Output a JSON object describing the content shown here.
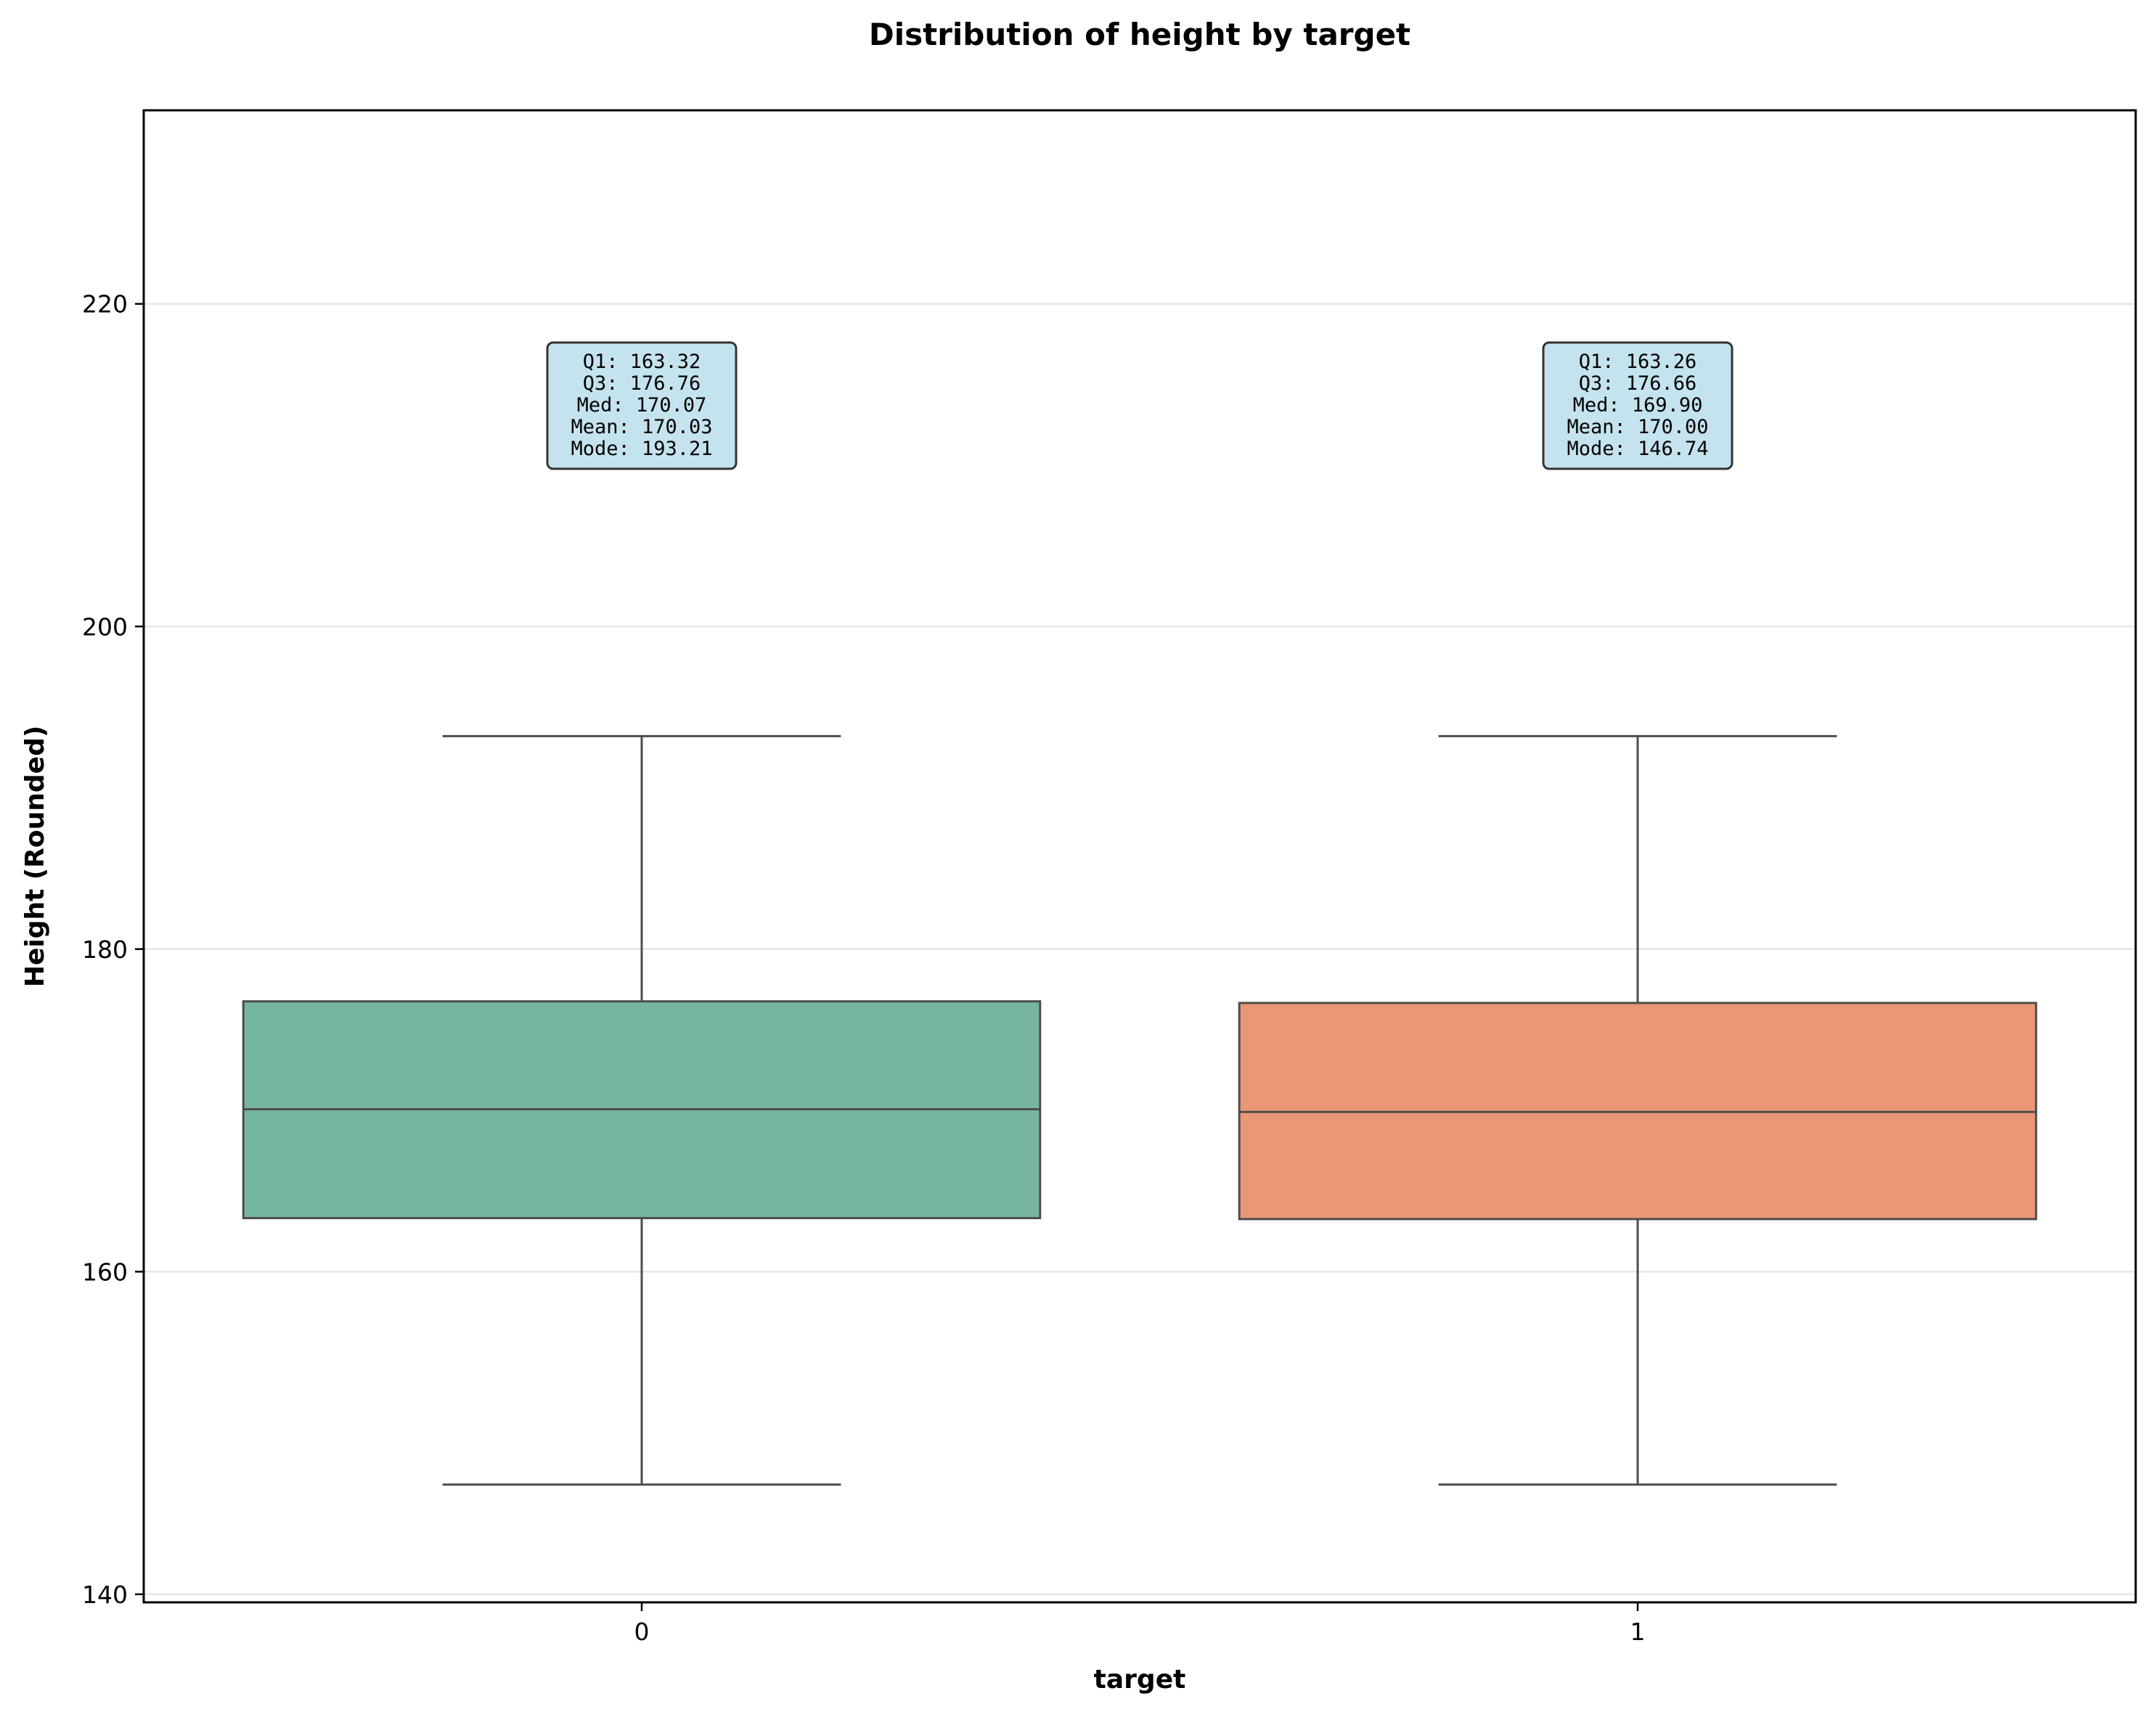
{
  "chart_data": {
    "type": "box",
    "title": "Distribution of height by target",
    "xlabel": "target",
    "ylabel": "Height (Rounded)",
    "ylim": [
      139.5,
      232
    ],
    "yticks": [
      140,
      160,
      180,
      200,
      220
    ],
    "grid": "horizontal",
    "categories": [
      "0",
      "1"
    ],
    "boxes": [
      {
        "category": "0",
        "whisker_low": 146.8,
        "q1": 163.32,
        "median": 170.07,
        "q3": 176.76,
        "whisker_high": 193.2,
        "color": "#76b5a0",
        "annotation": [
          "Q1: 163.32",
          "Q3: 176.76",
          "Med: 170.07",
          "Mean: 170.03",
          "Mode: 193.21"
        ]
      },
      {
        "category": "1",
        "whisker_low": 146.8,
        "q1": 163.26,
        "median": 169.9,
        "q3": 176.66,
        "whisker_high": 193.2,
        "color": "#e99774",
        "annotation": [
          "Q1: 163.26",
          "Q3: 176.66",
          "Med: 169.90",
          "Mean: 170.00",
          "Mode: 146.74"
        ]
      }
    ],
    "annotation_box_color": "#c5e3ee"
  }
}
